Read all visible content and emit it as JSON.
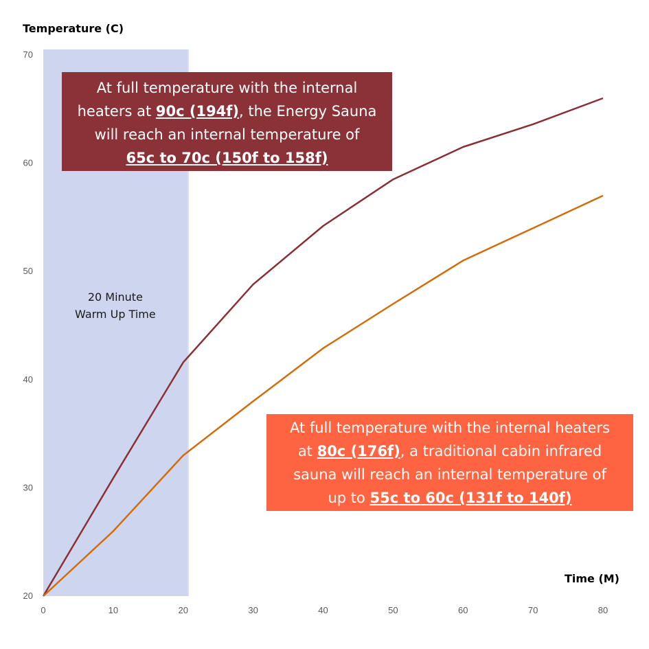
{
  "chart_data": {
    "type": "line",
    "ylabel": "Temperature (C)",
    "xlabel": "Time (M)",
    "x_ticks": [
      0,
      10,
      20,
      30,
      40,
      50,
      60,
      70,
      80
    ],
    "y_ticks": [
      20,
      30,
      40,
      50,
      60,
      70
    ],
    "xlim": [
      0,
      80
    ],
    "ylim": [
      20,
      70
    ],
    "grid": false,
    "legend": "none",
    "series": [
      {
        "color": "#8b2e36",
        "x": [
          0,
          10,
          20,
          30,
          40,
          50,
          60,
          70,
          80
        ],
        "y": [
          20,
          30.9,
          41.6,
          48.8,
          54.2,
          58.5,
          61.5,
          63.6,
          66
        ]
      },
      {
        "color": "#d46c0a",
        "x": [
          0,
          10,
          20,
          30,
          40,
          50,
          60,
          70,
          80
        ],
        "y": [
          20,
          26,
          33,
          38,
          42.9,
          47,
          51,
          54,
          57
        ]
      }
    ],
    "shaded_region": {
      "x_range": [
        0,
        20
      ],
      "color": "#cdd6ee",
      "label_line1": "20 Minute",
      "label_line2": "Warm Up Time"
    },
    "annotations": [
      {
        "id": "energy",
        "background": "#8b3138",
        "text1": "At full temperature with the internal",
        "text2": "heaters at ",
        "text3": "90c (194f)",
        "text4": ", the Energy Sauna",
        "text5": "will reach an internal temperature of",
        "text6": "65c to 70c (150f to 158f)"
      },
      {
        "id": "traditional",
        "background": "#fe6441",
        "text1": "At full temperature with the internal heaters",
        "text2": "at ",
        "text3": "80c (176f)",
        "text4": ", a traditional cabin infrared",
        "text5": "sauna will reach an internal temperature of",
        "text6": "up to ",
        "text7": "55c to 60c (131f to 140f)"
      }
    ]
  }
}
